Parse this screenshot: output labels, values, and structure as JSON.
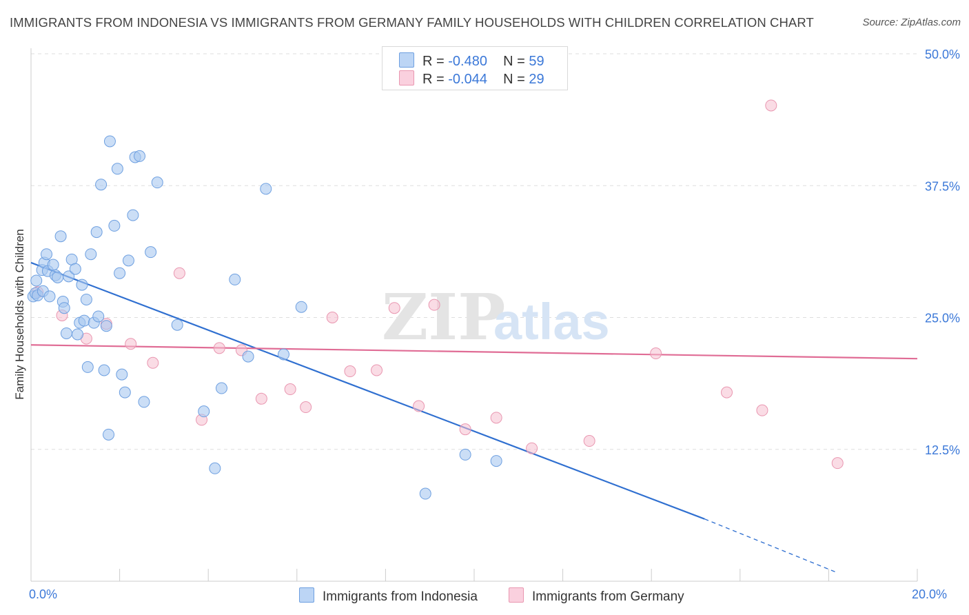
{
  "header": {
    "title": "IMMIGRANTS FROM INDONESIA VS IMMIGRANTS FROM GERMANY FAMILY HOUSEHOLDS WITH CHILDREN CORRELATION CHART",
    "source": "Source: ZipAtlas.com"
  },
  "legend": {
    "indonesia": {
      "r_label": "R =",
      "r_value": "-0.480",
      "n_label": "N =",
      "n_value": "59"
    },
    "germany": {
      "r_label": "R =",
      "r_value": "-0.044",
      "n_label": "N =",
      "n_value": "29"
    }
  },
  "watermark": {
    "zip": "ZIP",
    "atlas": "atlas"
  },
  "colors": {
    "indonesia_fill": "#a8c8f0",
    "indonesia_stroke": "#6d9fe0",
    "indonesia_line": "#2f6fd0",
    "germany_fill": "#f6bfd0",
    "germany_stroke": "#e996b0",
    "germany_line": "#e06c95",
    "axis_text": "#3b78d8"
  },
  "chart_data": {
    "type": "scatter",
    "title": "IMMIGRANTS FROM INDONESIA VS IMMIGRANTS FROM GERMANY FAMILY HOUSEHOLDS WITH CHILDREN CORRELATION CHART",
    "xlabel": "",
    "ylabel": "Family Households with Children",
    "xlim": [
      0,
      20
    ],
    "ylim": [
      0,
      50
    ],
    "x_tick_labels": [
      "0.0%",
      "20.0%"
    ],
    "y_ticks": [
      12.5,
      25.0,
      37.5,
      50.0
    ],
    "y_tick_labels": [
      "12.5%",
      "25.0%",
      "37.5%",
      "50.0%"
    ],
    "grid": "horizontal dashed",
    "legend_position": "top-center",
    "series": [
      {
        "name": "Immigrants from Indonesia",
        "r": -0.48,
        "n": 59,
        "trend": {
          "x": [
            0.0,
            15.2
          ],
          "y": [
            30.2,
            5.9
          ],
          "dashed_extension": {
            "x": [
              15.2,
              18.2
            ],
            "y": [
              5.9,
              0.8
            ]
          }
        },
        "points": [
          [
            0.05,
            27.0
          ],
          [
            0.1,
            27.3
          ],
          [
            0.12,
            28.5
          ],
          [
            0.15,
            27.1
          ],
          [
            0.25,
            29.5
          ],
          [
            0.27,
            27.5
          ],
          [
            0.3,
            30.2
          ],
          [
            0.35,
            31.0
          ],
          [
            0.38,
            29.4
          ],
          [
            0.42,
            27.0
          ],
          [
            0.5,
            30.0
          ],
          [
            0.55,
            29.0
          ],
          [
            0.6,
            28.8
          ],
          [
            0.67,
            32.7
          ],
          [
            0.72,
            26.5
          ],
          [
            0.75,
            25.9
          ],
          [
            0.8,
            23.5
          ],
          [
            0.85,
            28.9
          ],
          [
            0.92,
            30.5
          ],
          [
            1.0,
            29.6
          ],
          [
            1.05,
            23.4
          ],
          [
            1.1,
            24.5
          ],
          [
            1.15,
            28.1
          ],
          [
            1.2,
            24.7
          ],
          [
            1.25,
            26.7
          ],
          [
            1.28,
            20.3
          ],
          [
            1.35,
            31.0
          ],
          [
            1.42,
            24.5
          ],
          [
            1.48,
            33.1
          ],
          [
            1.52,
            25.1
          ],
          [
            1.58,
            37.6
          ],
          [
            1.65,
            20.0
          ],
          [
            1.7,
            24.2
          ],
          [
            1.75,
            13.9
          ],
          [
            1.78,
            41.7
          ],
          [
            1.88,
            33.7
          ],
          [
            1.95,
            39.1
          ],
          [
            2.0,
            29.2
          ],
          [
            2.05,
            19.6
          ],
          [
            2.12,
            17.9
          ],
          [
            2.2,
            30.4
          ],
          [
            2.3,
            34.7
          ],
          [
            2.35,
            40.2
          ],
          [
            2.45,
            40.3
          ],
          [
            2.55,
            17.0
          ],
          [
            2.7,
            31.2
          ],
          [
            2.85,
            37.8
          ],
          [
            3.3,
            24.3
          ],
          [
            3.9,
            16.1
          ],
          [
            4.15,
            10.7
          ],
          [
            4.3,
            18.3
          ],
          [
            4.6,
            28.6
          ],
          [
            4.9,
            21.3
          ],
          [
            5.3,
            37.2
          ],
          [
            5.7,
            21.5
          ],
          [
            6.1,
            26.0
          ],
          [
            8.9,
            8.3
          ],
          [
            9.8,
            12.0
          ],
          [
            10.5,
            11.4
          ]
        ]
      },
      {
        "name": "Immigrants from Germany",
        "r": -0.044,
        "n": 29,
        "trend": {
          "x": [
            0.0,
            20.0
          ],
          "y": [
            22.4,
            21.1
          ]
        },
        "points": [
          [
            0.15,
            27.4
          ],
          [
            0.7,
            25.2
          ],
          [
            1.25,
            23.0
          ],
          [
            1.7,
            24.4
          ],
          [
            2.25,
            22.5
          ],
          [
            2.75,
            20.7
          ],
          [
            3.35,
            29.2
          ],
          [
            3.85,
            15.3
          ],
          [
            4.25,
            22.1
          ],
          [
            4.75,
            21.9
          ],
          [
            5.2,
            17.3
          ],
          [
            5.85,
            18.2
          ],
          [
            6.2,
            16.5
          ],
          [
            6.8,
            25.0
          ],
          [
            7.2,
            19.9
          ],
          [
            7.8,
            20.0
          ],
          [
            8.2,
            25.9
          ],
          [
            8.75,
            16.6
          ],
          [
            9.1,
            26.2
          ],
          [
            9.8,
            14.4
          ],
          [
            10.5,
            15.5
          ],
          [
            11.3,
            12.6
          ],
          [
            11.8,
            49.8
          ],
          [
            12.6,
            13.3
          ],
          [
            14.1,
            21.6
          ],
          [
            15.7,
            17.9
          ],
          [
            16.5,
            16.2
          ],
          [
            16.7,
            45.1
          ],
          [
            18.2,
            11.2
          ]
        ]
      }
    ]
  },
  "bottom_legend": {
    "indonesia_label": "Immigrants from Indonesia",
    "germany_label": "Immigrants from Germany"
  }
}
